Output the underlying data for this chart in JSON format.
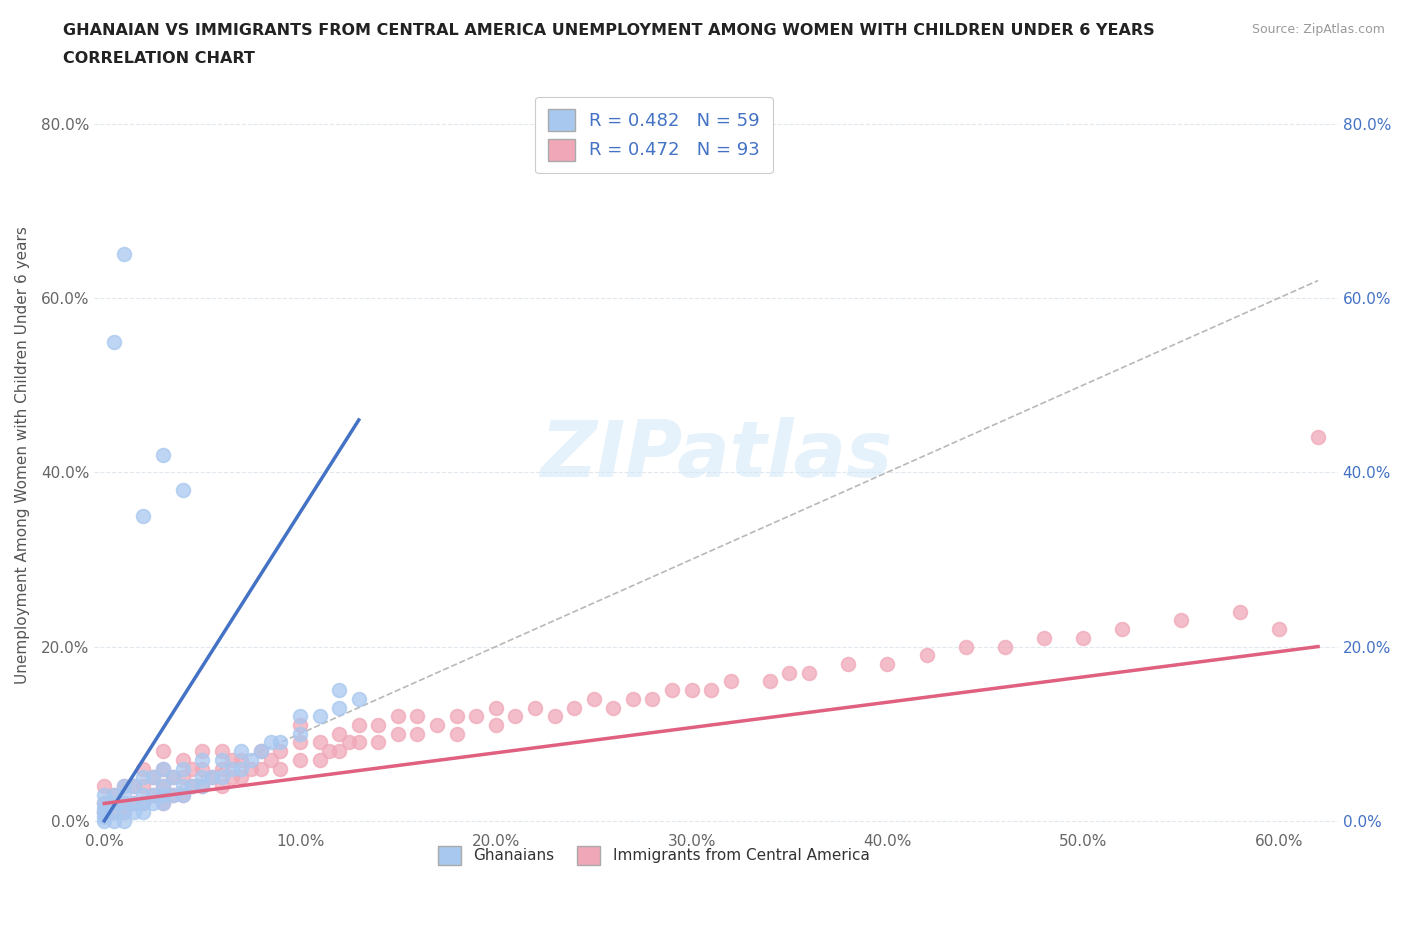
{
  "title_line1": "GHANAIAN VS IMMIGRANTS FROM CENTRAL AMERICA UNEMPLOYMENT AMONG WOMEN WITH CHILDREN UNDER 6 YEARS",
  "title_line2": "CORRELATION CHART",
  "source": "Source: ZipAtlas.com",
  "ylabel": "Unemployment Among Women with Children Under 6 years",
  "xlim": [
    -0.005,
    0.63
  ],
  "ylim": [
    -0.01,
    0.85
  ],
  "xticks": [
    0.0,
    0.1,
    0.2,
    0.3,
    0.4,
    0.5,
    0.6
  ],
  "xticklabels": [
    "0.0%",
    "10.0%",
    "20.0%",
    "30.0%",
    "40.0%",
    "50.0%",
    "60.0%"
  ],
  "yticks": [
    0.0,
    0.2,
    0.4,
    0.6,
    0.8
  ],
  "yticklabels": [
    "0.0%",
    "20.0%",
    "40.0%",
    "60.0%",
    "80.0%"
  ],
  "r_ghana": 0.482,
  "n_ghana": 59,
  "r_ca": 0.472,
  "n_ca": 93,
  "ghana_color": "#a8c8f0",
  "ca_color": "#f0a8b8",
  "ghana_line_color": "#4472c4",
  "ca_line_color": "#e06080",
  "legend_ghana": "Ghanaians",
  "legend_ca": "Immigrants from Central America",
  "watermark_color": "#d0e8f8",
  "ghana_scatter_x": [
    0.0,
    0.0,
    0.0,
    0.0,
    0.0,
    0.0,
    0.005,
    0.005,
    0.005,
    0.005,
    0.01,
    0.01,
    0.01,
    0.01,
    0.01,
    0.015,
    0.015,
    0.015,
    0.02,
    0.02,
    0.02,
    0.02,
    0.025,
    0.025,
    0.025,
    0.03,
    0.03,
    0.03,
    0.03,
    0.035,
    0.035,
    0.04,
    0.04,
    0.04,
    0.045,
    0.05,
    0.05,
    0.05,
    0.055,
    0.06,
    0.06,
    0.065,
    0.07,
    0.07,
    0.075,
    0.08,
    0.085,
    0.09,
    0.1,
    0.1,
    0.11,
    0.12,
    0.12,
    0.13,
    0.02,
    0.03,
    0.04,
    0.005,
    0.01
  ],
  "ghana_scatter_y": [
    0.0,
    0.005,
    0.01,
    0.015,
    0.02,
    0.03,
    0.0,
    0.01,
    0.02,
    0.03,
    0.0,
    0.01,
    0.02,
    0.03,
    0.04,
    0.01,
    0.02,
    0.04,
    0.01,
    0.02,
    0.03,
    0.05,
    0.02,
    0.03,
    0.05,
    0.02,
    0.03,
    0.04,
    0.06,
    0.03,
    0.05,
    0.03,
    0.04,
    0.06,
    0.04,
    0.04,
    0.05,
    0.07,
    0.05,
    0.05,
    0.07,
    0.06,
    0.06,
    0.08,
    0.07,
    0.08,
    0.09,
    0.09,
    0.1,
    0.12,
    0.12,
    0.13,
    0.15,
    0.14,
    0.35,
    0.42,
    0.38,
    0.55,
    0.65
  ],
  "ca_scatter_x": [
    0.0,
    0.0,
    0.0,
    0.005,
    0.005,
    0.01,
    0.01,
    0.01,
    0.015,
    0.015,
    0.02,
    0.02,
    0.02,
    0.025,
    0.025,
    0.03,
    0.03,
    0.03,
    0.03,
    0.035,
    0.035,
    0.04,
    0.04,
    0.04,
    0.045,
    0.045,
    0.05,
    0.05,
    0.05,
    0.055,
    0.06,
    0.06,
    0.06,
    0.065,
    0.065,
    0.07,
    0.07,
    0.075,
    0.08,
    0.08,
    0.085,
    0.09,
    0.09,
    0.1,
    0.1,
    0.1,
    0.11,
    0.11,
    0.115,
    0.12,
    0.12,
    0.125,
    0.13,
    0.13,
    0.14,
    0.14,
    0.15,
    0.15,
    0.16,
    0.16,
    0.17,
    0.18,
    0.18,
    0.19,
    0.2,
    0.2,
    0.21,
    0.22,
    0.23,
    0.24,
    0.25,
    0.26,
    0.27,
    0.28,
    0.29,
    0.3,
    0.31,
    0.32,
    0.34,
    0.35,
    0.36,
    0.38,
    0.4,
    0.42,
    0.44,
    0.46,
    0.48,
    0.5,
    0.52,
    0.55,
    0.58,
    0.6,
    0.62
  ],
  "ca_scatter_y": [
    0.01,
    0.02,
    0.04,
    0.01,
    0.03,
    0.01,
    0.02,
    0.04,
    0.02,
    0.04,
    0.02,
    0.04,
    0.06,
    0.03,
    0.05,
    0.02,
    0.04,
    0.06,
    0.08,
    0.03,
    0.05,
    0.03,
    0.05,
    0.07,
    0.04,
    0.06,
    0.04,
    0.06,
    0.08,
    0.05,
    0.04,
    0.06,
    0.08,
    0.05,
    0.07,
    0.05,
    0.07,
    0.06,
    0.06,
    0.08,
    0.07,
    0.06,
    0.08,
    0.07,
    0.09,
    0.11,
    0.07,
    0.09,
    0.08,
    0.08,
    0.1,
    0.09,
    0.09,
    0.11,
    0.09,
    0.11,
    0.1,
    0.12,
    0.1,
    0.12,
    0.11,
    0.1,
    0.12,
    0.12,
    0.11,
    0.13,
    0.12,
    0.13,
    0.12,
    0.13,
    0.14,
    0.13,
    0.14,
    0.14,
    0.15,
    0.15,
    0.15,
    0.16,
    0.16,
    0.17,
    0.17,
    0.18,
    0.18,
    0.19,
    0.2,
    0.2,
    0.21,
    0.21,
    0.22,
    0.23,
    0.24,
    0.22,
    0.44
  ],
  "ghana_trend_x": [
    0.0,
    0.13
  ],
  "ghana_trend_y": [
    0.0,
    0.46
  ],
  "ca_trend_x": [
    0.0,
    0.62
  ],
  "ca_trend_y": [
    0.02,
    0.2
  ]
}
